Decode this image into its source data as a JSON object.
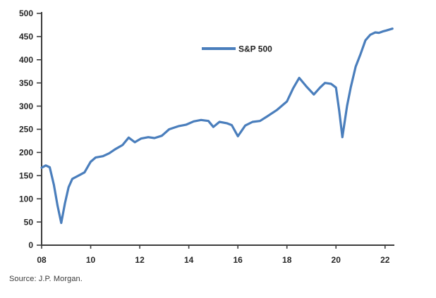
{
  "page": {
    "background": "#ffffff"
  },
  "source_note": "Source: J.P. Morgan.",
  "chart_data": {
    "type": "line",
    "title": "",
    "xlabel": "",
    "ylabel": "",
    "grid": false,
    "legend": {
      "label": "S&P 500",
      "position": "top-center-inside"
    },
    "colors": {
      "line": "#4a7ebc",
      "axis": "#3d3d3d",
      "tick_text": "#262626"
    },
    "xlim": [
      2008,
      2022.45
    ],
    "ylim": [
      0,
      500
    ],
    "y_ticks": [
      0,
      50,
      100,
      150,
      200,
      250,
      300,
      350,
      400,
      450,
      500
    ],
    "x_ticks": [
      2008,
      2010,
      2012,
      2014,
      2016,
      2018,
      2020,
      2022
    ],
    "x_tick_labels": [
      "08",
      "10",
      "12",
      "14",
      "16",
      "18",
      "20",
      "22"
    ],
    "series": [
      {
        "name": "S&P 500",
        "points": [
          [
            2008.0,
            167
          ],
          [
            2008.17,
            172
          ],
          [
            2008.33,
            168
          ],
          [
            2008.5,
            130
          ],
          [
            2008.65,
            85
          ],
          [
            2008.8,
            48
          ],
          [
            2008.95,
            90
          ],
          [
            2009.1,
            125
          ],
          [
            2009.25,
            143
          ],
          [
            2009.5,
            150
          ],
          [
            2009.75,
            157
          ],
          [
            2010.0,
            180
          ],
          [
            2010.2,
            189
          ],
          [
            2010.5,
            192
          ],
          [
            2010.75,
            198
          ],
          [
            2011.0,
            207
          ],
          [
            2011.3,
            216
          ],
          [
            2011.55,
            232
          ],
          [
            2011.8,
            222
          ],
          [
            2012.05,
            230
          ],
          [
            2012.35,
            233
          ],
          [
            2012.6,
            231
          ],
          [
            2012.9,
            236
          ],
          [
            2013.2,
            250
          ],
          [
            2013.6,
            257
          ],
          [
            2013.9,
            260
          ],
          [
            2014.2,
            267
          ],
          [
            2014.5,
            270
          ],
          [
            2014.8,
            268
          ],
          [
            2015.0,
            255
          ],
          [
            2015.25,
            266
          ],
          [
            2015.55,
            263
          ],
          [
            2015.75,
            259
          ],
          [
            2016.0,
            235
          ],
          [
            2016.3,
            258
          ],
          [
            2016.6,
            266
          ],
          [
            2016.9,
            268
          ],
          [
            2017.2,
            278
          ],
          [
            2017.6,
            292
          ],
          [
            2018.0,
            310
          ],
          [
            2018.25,
            338
          ],
          [
            2018.5,
            361
          ],
          [
            2018.8,
            342
          ],
          [
            2019.1,
            325
          ],
          [
            2019.35,
            340
          ],
          [
            2019.55,
            350
          ],
          [
            2019.8,
            348
          ],
          [
            2020.0,
            340
          ],
          [
            2020.13,
            290
          ],
          [
            2020.26,
            233
          ],
          [
            2020.45,
            300
          ],
          [
            2020.6,
            340
          ],
          [
            2020.8,
            385
          ],
          [
            2021.0,
            412
          ],
          [
            2021.2,
            442
          ],
          [
            2021.4,
            454
          ],
          [
            2021.6,
            459
          ],
          [
            2021.75,
            458
          ],
          [
            2021.9,
            461
          ],
          [
            2022.05,
            463
          ],
          [
            2022.3,
            467
          ]
        ]
      }
    ]
  }
}
